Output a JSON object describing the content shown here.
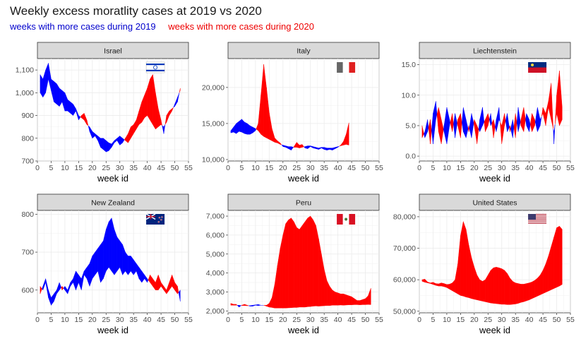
{
  "title": "Weekly excess moratlity cases at 2019 vs 2020",
  "legend": {
    "label_2019": "weeks with more cases during 2019",
    "label_2020": "weeks with more cases during 2020",
    "color_2019": "#0000ff",
    "color_2020": "#ff0000"
  },
  "chart_data": [
    {
      "type": "area",
      "title": "Israel",
      "flag": "israel-flag",
      "xlabel": "week id",
      "xlim": [
        0,
        55
      ],
      "xticks": [
        0,
        5,
        10,
        15,
        20,
        25,
        30,
        35,
        40,
        45,
        50,
        55
      ],
      "ylim": [
        700,
        1150
      ],
      "yticks": [
        700,
        800,
        900,
        1000,
        1100
      ],
      "yticklabels": [
        "700",
        "800",
        "900",
        "1,000",
        "1,100"
      ],
      "x": [
        1,
        2,
        3,
        4,
        5,
        6,
        7,
        8,
        9,
        10,
        11,
        12,
        13,
        14,
        15,
        16,
        17,
        18,
        19,
        20,
        21,
        22,
        23,
        24,
        25,
        26,
        27,
        28,
        29,
        30,
        31,
        32,
        33,
        34,
        35,
        36,
        37,
        38,
        39,
        40,
        41,
        42,
        43,
        44,
        45,
        46,
        47,
        48,
        49,
        50,
        51,
        52
      ],
      "series": [
        {
          "name": "2019",
          "values": [
            1080,
            1060,
            1100,
            1130,
            1060,
            1050,
            1040,
            1020,
            1010,
            1000,
            970,
            960,
            950,
            930,
            900,
            890,
            880,
            860,
            850,
            830,
            820,
            810,
            800,
            800,
            790,
            780,
            775,
            790,
            800,
            810,
            800,
            790,
            780,
            800,
            820,
            840,
            860,
            870,
            890,
            900,
            880,
            860,
            840,
            850,
            860,
            850,
            870,
            900,
            920,
            950,
            980,
            1010
          ]
        },
        {
          "name": "2020",
          "values": [
            1000,
            980,
            1000,
            1060,
            1010,
            960,
            950,
            940,
            960,
            920,
            920,
            910,
            900,
            920,
            880,
            900,
            910,
            880,
            830,
            800,
            810,
            790,
            760,
            750,
            740,
            745,
            760,
            780,
            790,
            770,
            780,
            800,
            820,
            850,
            860,
            880,
            920,
            960,
            990,
            1020,
            1060,
            1080,
            1000,
            930,
            880,
            820,
            900,
            920,
            930,
            940,
            960,
            1020
          ]
        }
      ]
    },
    {
      "type": "area",
      "title": "Italy",
      "flag": "italy-flag",
      "xlabel": "week id",
      "xlim": [
        0,
        55
      ],
      "xticks": [
        0,
        5,
        10,
        15,
        20,
        25,
        30,
        35,
        40,
        45,
        50,
        55
      ],
      "ylim": [
        9800,
        24000
      ],
      "yticks": [
        10000,
        15000,
        20000
      ],
      "yticklabels": [
        "10,000",
        "15,000",
        "20,000"
      ],
      "x": [
        1,
        2,
        3,
        4,
        5,
        6,
        7,
        8,
        9,
        10,
        11,
        12,
        13,
        14,
        15,
        16,
        17,
        18,
        19,
        20,
        21,
        22,
        23,
        24,
        25,
        26,
        27,
        28,
        29,
        30,
        31,
        32,
        33,
        34,
        35,
        36,
        37,
        38,
        39,
        40,
        41,
        42,
        43,
        44
      ],
      "series": [
        {
          "name": "2019",
          "values": [
            14000,
            14500,
            15000,
            15300,
            15600,
            15200,
            15000,
            14700,
            14500,
            14300,
            14000,
            13500,
            13200,
            13000,
            12800,
            12600,
            12400,
            12300,
            12100,
            12000,
            11900,
            11800,
            11800,
            11700,
            11700,
            11600,
            11700,
            11800,
            11900,
            11900,
            11800,
            11700,
            11600,
            11700,
            11700,
            11600,
            11600,
            11600,
            11700,
            11800,
            11900,
            12000,
            12100,
            12000
          ]
        },
        {
          "name": "2020",
          "values": [
            13700,
            13800,
            13600,
            13900,
            13800,
            13600,
            13500,
            13500,
            13700,
            14000,
            15000,
            19000,
            23200,
            20000,
            16500,
            14300,
            13000,
            12600,
            12300,
            11800,
            11700,
            11500,
            11300,
            11800,
            12400,
            12000,
            12100,
            11600,
            11500,
            11800,
            11600,
            11500,
            11400,
            11600,
            11400,
            11300,
            11400,
            11300,
            11500,
            11700,
            12000,
            12500,
            13500,
            15100
          ]
        }
      ]
    },
    {
      "type": "area",
      "title": "Liechtenstein",
      "flag": "liechtenstein-flag",
      "xlabel": "week id",
      "xlim": [
        0,
        55
      ],
      "xticks": [
        0,
        5,
        10,
        15,
        20,
        25,
        30,
        35,
        40,
        45,
        50,
        55
      ],
      "ylim": [
        -0.8,
        16
      ],
      "yticks": [
        0,
        5,
        10,
        15
      ],
      "yticklabels": [
        "0.0",
        "5.0",
        "10.0",
        "15.0"
      ],
      "x": [
        1,
        2,
        3,
        4,
        5,
        6,
        7,
        8,
        9,
        10,
        11,
        12,
        13,
        14,
        15,
        16,
        17,
        18,
        19,
        20,
        21,
        22,
        23,
        24,
        25,
        26,
        27,
        28,
        29,
        30,
        31,
        32,
        33,
        34,
        35,
        36,
        37,
        38,
        39,
        40,
        41,
        42,
        43,
        44,
        45,
        46,
        47,
        48,
        49,
        50,
        51,
        52
      ],
      "series": [
        {
          "name": "2019",
          "values": [
            3,
            4,
            6,
            2,
            7,
            9,
            4,
            2,
            5,
            8,
            6,
            4,
            7,
            5,
            3,
            8,
            6,
            4,
            7,
            5,
            2,
            6,
            8,
            4,
            5,
            7,
            3,
            6,
            8,
            2,
            5,
            7,
            4,
            6,
            3,
            8,
            5,
            4,
            7,
            6,
            4,
            5,
            8,
            6,
            7,
            5,
            8,
            6,
            4,
            7,
            5,
            6
          ]
        },
        {
          "name": "2020",
          "values": [
            5,
            3,
            4,
            6,
            2,
            6,
            8,
            6,
            4,
            2,
            5,
            7,
            3,
            6,
            7,
            4,
            3,
            5,
            3,
            6,
            5,
            4,
            5,
            6,
            7,
            5,
            6,
            4,
            6,
            5,
            7,
            4,
            5,
            3,
            7,
            4,
            6,
            8,
            5,
            4,
            7,
            6,
            4,
            5,
            8,
            7,
            9,
            12,
            2,
            10,
            14,
            8
          ]
        }
      ]
    },
    {
      "type": "area",
      "title": "New Zealand",
      "flag": "new-zealand-flag",
      "xlabel": "week id",
      "xlim": [
        0,
        55
      ],
      "xticks": [
        0,
        5,
        10,
        15,
        20,
        25,
        30,
        35,
        40,
        45,
        50,
        55
      ],
      "ylim": [
        540,
        810
      ],
      "yticks": [
        600,
        700,
        800
      ],
      "yticklabels": [
        "600",
        "700",
        "800"
      ],
      "x": [
        1,
        2,
        3,
        4,
        5,
        6,
        7,
        8,
        9,
        10,
        11,
        12,
        13,
        14,
        15,
        16,
        17,
        18,
        19,
        20,
        21,
        22,
        23,
        24,
        25,
        26,
        27,
        28,
        29,
        30,
        31,
        32,
        33,
        34,
        35,
        36,
        37,
        38,
        39,
        40,
        41,
        42,
        43,
        44,
        45,
        46,
        47,
        48,
        49,
        50,
        51,
        52
      ],
      "series": [
        {
          "name": "2019",
          "values": [
            590,
            610,
            630,
            600,
            580,
            590,
            600,
            620,
            600,
            610,
            600,
            620,
            630,
            650,
            640,
            630,
            650,
            660,
            670,
            690,
            700,
            710,
            720,
            730,
            760,
            780,
            790,
            760,
            740,
            730,
            720,
            700,
            690,
            690,
            680,
            670,
            660,
            650,
            640,
            630,
            620,
            610,
            600,
            600,
            610,
            600,
            590,
            600,
            610,
            600,
            590,
            600
          ]
        },
        {
          "name": "2020",
          "values": [
            610,
            600,
            620,
            580,
            560,
            570,
            590,
            600,
            610,
            600,
            590,
            610,
            620,
            600,
            620,
            600,
            640,
            630,
            610,
            630,
            640,
            650,
            620,
            630,
            650,
            660,
            650,
            640,
            650,
            660,
            640,
            650,
            640,
            650,
            640,
            650,
            630,
            620,
            630,
            620,
            640,
            630,
            620,
            640,
            620,
            610,
            600,
            620,
            640,
            620,
            610,
            570
          ]
        }
      ]
    },
    {
      "type": "area",
      "title": "Peru",
      "flag": "peru-flag",
      "xlabel": "week id",
      "xlim": [
        0,
        55
      ],
      "xticks": [
        0,
        5,
        10,
        15,
        20,
        25,
        30,
        35,
        40,
        45,
        50,
        55
      ],
      "ylim": [
        1900,
        7300
      ],
      "yticks": [
        2000,
        3000,
        4000,
        5000,
        6000,
        7000
      ],
      "yticklabels": [
        "2,000",
        "3,000",
        "4,000",
        "5,000",
        "6,000",
        "7,000"
      ],
      "x": [
        1,
        2,
        3,
        4,
        5,
        6,
        7,
        8,
        9,
        10,
        11,
        12,
        13,
        14,
        15,
        16,
        17,
        18,
        19,
        20,
        21,
        22,
        23,
        24,
        25,
        26,
        27,
        28,
        29,
        30,
        31,
        32,
        33,
        34,
        35,
        36,
        37,
        38,
        39,
        40,
        41,
        42,
        43,
        44,
        45,
        46,
        47,
        48,
        49,
        50,
        51,
        52
      ],
      "series": [
        {
          "name": "2019",
          "values": [
            2300,
            2300,
            2300,
            2300,
            2280,
            2280,
            2270,
            2280,
            2300,
            2320,
            2340,
            2300,
            2300,
            2250,
            2200,
            2180,
            2150,
            2150,
            2150,
            2150,
            2150,
            2160,
            2170,
            2180,
            2180,
            2200,
            2200,
            2200,
            2220,
            2230,
            2250,
            2260,
            2250,
            2260,
            2270,
            2280,
            2280,
            2300,
            2300,
            2300,
            2310,
            2300,
            2310,
            2320,
            2320,
            2330,
            2330,
            2320,
            2330,
            2330,
            2340,
            2330
          ]
        },
        {
          "name": "2020",
          "values": [
            2400,
            2350,
            2350,
            2200,
            2300,
            2350,
            2300,
            2250,
            2250,
            2300,
            2280,
            2300,
            2300,
            2300,
            2400,
            2700,
            3400,
            4400,
            5300,
            6000,
            6600,
            6800,
            6900,
            6700,
            6400,
            6300,
            6500,
            6700,
            6900,
            7000,
            6800,
            6500,
            5800,
            5000,
            4200,
            3600,
            3300,
            3100,
            3000,
            2950,
            2900,
            2900,
            2850,
            2800,
            2750,
            2650,
            2550,
            2550,
            2600,
            2650,
            2800,
            3200
          ]
        }
      ]
    },
    {
      "type": "area",
      "title": "United States",
      "flag": "united-states-flag",
      "xlabel": "week id",
      "xlim": [
        0,
        55
      ],
      "xticks": [
        0,
        5,
        10,
        15,
        20,
        25,
        30,
        35,
        40,
        45,
        50,
        55
      ],
      "ylim": [
        49500,
        82000
      ],
      "yticks": [
        50000,
        60000,
        70000,
        80000
      ],
      "yticklabels": [
        "50,000",
        "60,000",
        "70,000",
        "80,000"
      ],
      "x": [
        1,
        2,
        3,
        4,
        5,
        6,
        7,
        8,
        9,
        10,
        11,
        12,
        13,
        14,
        15,
        16,
        17,
        18,
        19,
        20,
        21,
        22,
        23,
        24,
        25,
        26,
        27,
        28,
        29,
        30,
        31,
        32,
        33,
        34,
        35,
        36,
        37,
        38,
        39,
        40,
        41,
        42,
        43,
        44,
        45,
        46,
        47,
        48,
        49,
        50,
        51,
        52
      ],
      "series": [
        {
          "name": "2019",
          "values": [
            59500,
            59200,
            59000,
            58800,
            58500,
            58200,
            58000,
            58000,
            57800,
            57500,
            57000,
            56500,
            56000,
            55500,
            55000,
            54800,
            54500,
            54300,
            54000,
            53800,
            53600,
            53400,
            53200,
            53000,
            52800,
            52600,
            52500,
            52400,
            52300,
            52200,
            52200,
            52100,
            52100,
            52200,
            52300,
            52500,
            52800,
            53000,
            53300,
            53600,
            54000,
            54400,
            54800,
            55200,
            55600,
            56000,
            56400,
            56800,
            57200,
            57600,
            58000,
            58500
          ]
        },
        {
          "name": "2020",
          "values": [
            60000,
            60200,
            59300,
            59000,
            59200,
            58800,
            58700,
            59000,
            58800,
            58500,
            58600,
            59000,
            60000,
            65000,
            74000,
            78500,
            76000,
            71000,
            67000,
            64000,
            61500,
            60000,
            59500,
            60000,
            61500,
            63000,
            63800,
            64000,
            63800,
            63500,
            63000,
            62000,
            60500,
            59500,
            59000,
            58800,
            58600,
            58600,
            58800,
            59000,
            59300,
            59800,
            60500,
            61500,
            63000,
            65000,
            67500,
            70500,
            73500,
            76500,
            77000,
            76000
          ]
        }
      ]
    }
  ]
}
